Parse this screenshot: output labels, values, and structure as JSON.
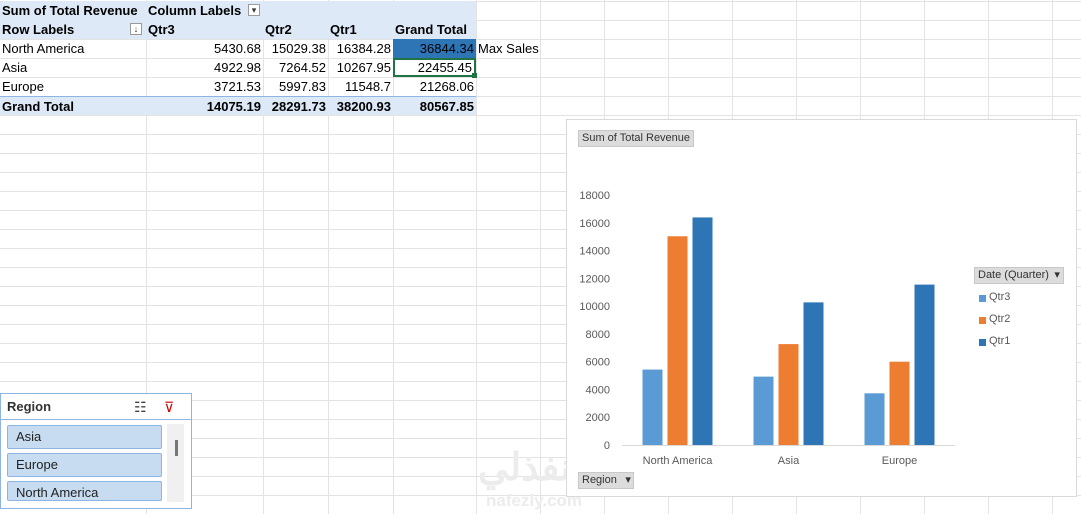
{
  "pivot": {
    "title": "Sum of Total Revenue",
    "column_labels": "Column Labels",
    "row_labels": "Row Labels",
    "columns": [
      "Qtr3",
      "Qtr2",
      "Qtr1",
      "Grand Total"
    ],
    "rows": [
      {
        "label": "North America",
        "values": [
          "5430.68",
          "15029.38",
          "16384.28",
          "36844.34"
        ],
        "note": "Max Sales"
      },
      {
        "label": "Asia",
        "values": [
          "4922.98",
          "7264.52",
          "10267.95",
          "22455.45"
        ],
        "note": ""
      },
      {
        "label": "Europe",
        "values": [
          "3721.53",
          "5997.83",
          "11548.7",
          "21268.06"
        ],
        "note": ""
      }
    ],
    "grand_total": {
      "label": "Grand Total",
      "values": [
        "14075.19",
        "28291.73",
        "38200.93",
        "80567.85"
      ]
    }
  },
  "slicer": {
    "title": "Region",
    "items": [
      "Asia",
      "Europe",
      "North America"
    ]
  },
  "chart": {
    "value_field_button": "Sum of Total Revenue",
    "legend_field_button": "Date (Quarter)",
    "axis_field_button": "Region"
  },
  "chart_data": {
    "type": "bar",
    "categories": [
      "North America",
      "Asia",
      "Europe"
    ],
    "series": [
      {
        "name": "Qtr3",
        "values": [
          5430.68,
          4922.98,
          3721.53
        ],
        "color": "#5b9bd5"
      },
      {
        "name": "Qtr2",
        "values": [
          15029.38,
          7264.52,
          5997.83
        ],
        "color": "#ed7d31"
      },
      {
        "name": "Qtr1",
        "values": [
          16384.28,
          10267.95,
          11548.7
        ],
        "color": "#2e75b6"
      }
    ],
    "ylim": [
      0,
      18000
    ],
    "yticks": [
      "0",
      "2000",
      "4000",
      "6000",
      "8000",
      "10000",
      "12000",
      "14000",
      "16000",
      "18000"
    ],
    "legend": "right",
    "grid": false
  },
  "colors": {
    "selected_cell": "#2e75b6",
    "pivot_header_bg": "#dde9f7",
    "slicer_item": "#c7dcf1"
  },
  "watermark": {
    "arabic": "نفذلي",
    "latin": "nafezly.com"
  }
}
